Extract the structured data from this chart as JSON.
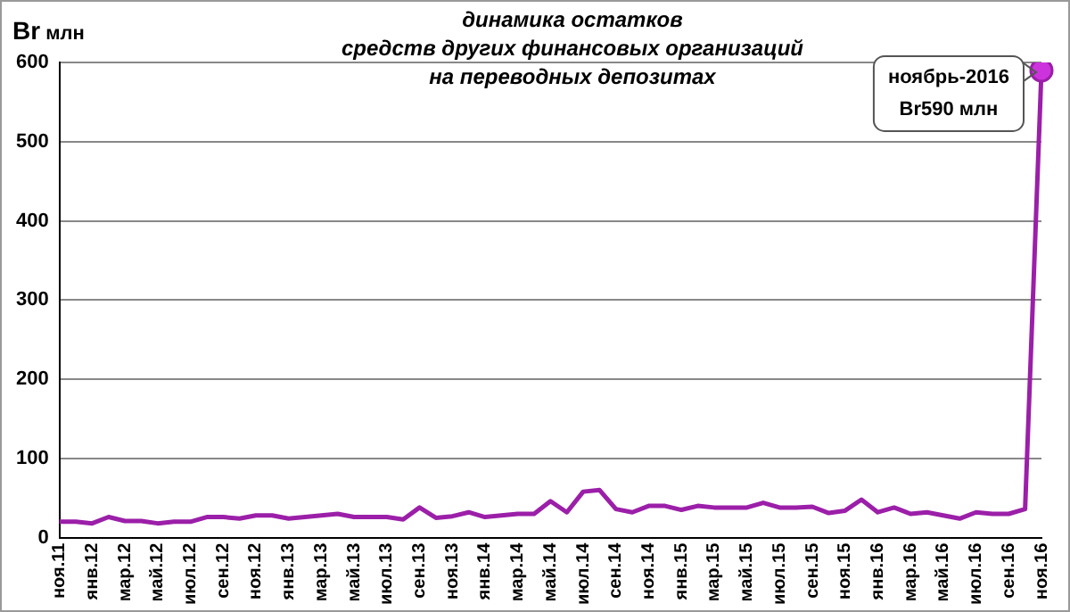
{
  "chart_data": {
    "type": "line",
    "title": "динамика остатков\nсредств других финансовых организаций\nна переводных депозитах",
    "ylabel": "Br млн",
    "categories": [
      "ноя.11",
      null,
      "янв.12",
      null,
      "мар.12",
      null,
      "май.12",
      null,
      "июл.12",
      null,
      "сен.12",
      null,
      "ноя.12",
      null,
      "янв.13",
      null,
      "мар.13",
      null,
      "май.13",
      null,
      "июл.13",
      null,
      "сен.13",
      null,
      "ноя.13",
      null,
      "янв.14",
      null,
      "мар.14",
      null,
      "май.14",
      null,
      "июл.14",
      null,
      "сен.14",
      null,
      "ноя.14",
      null,
      "янв.15",
      null,
      "мар.15",
      null,
      "май.15",
      null,
      "июл.15",
      null,
      "сен.15",
      null,
      "ноя.15",
      null,
      "янв.16",
      null,
      "мар.16",
      null,
      "май.16",
      null,
      "июл.16",
      null,
      "сен.16",
      null,
      "ноя.16"
    ],
    "series": [
      {
        "color": "#9b1fa8",
        "values": [
          20,
          20,
          18,
          26,
          21,
          21,
          18,
          20,
          20,
          26,
          26,
          24,
          28,
          28,
          24,
          26,
          28,
          30,
          26,
          26,
          26,
          23,
          38,
          25,
          27,
          32,
          26,
          28,
          30,
          30,
          46,
          32,
          58,
          60,
          36,
          32,
          40,
          40,
          35,
          40,
          38,
          38,
          38,
          44,
          38,
          38,
          39,
          31,
          34,
          48,
          32,
          38,
          30,
          32,
          28,
          24,
          32,
          30,
          30,
          36,
          590
        ]
      }
    ],
    "ylim": [
      0,
      600
    ],
    "yticks": [
      0,
      100,
      200,
      300,
      400,
      500,
      600
    ],
    "grid": "y",
    "legend": false,
    "marker": "none",
    "line_style": "solid",
    "annotations": [
      {
        "text": "ноябрь-2016\nBr590 млн",
        "x": "ноя.16",
        "y": 590
      }
    ]
  }
}
